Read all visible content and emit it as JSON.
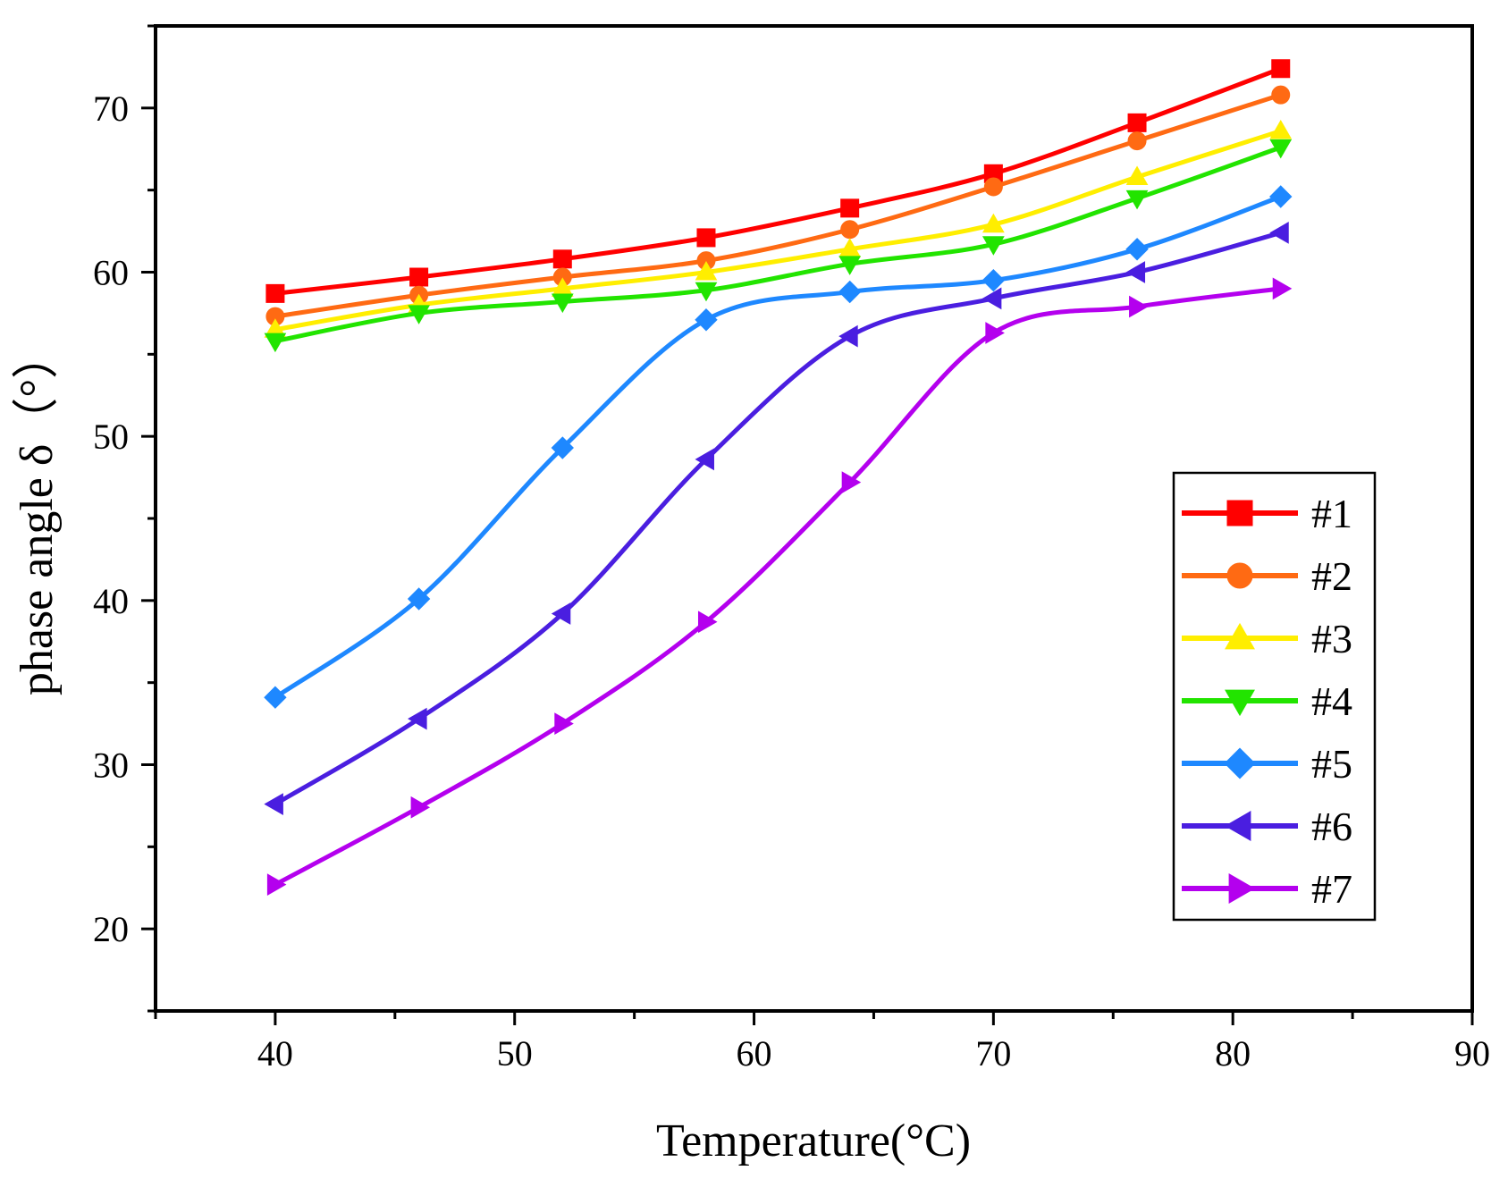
{
  "chart_data": {
    "type": "line",
    "title": "",
    "xlabel": "Temperature(°C)",
    "ylabel": "phase angle δ（°）",
    "xlim": [
      35,
      90
    ],
    "ylim": [
      15,
      75
    ],
    "x_ticks": [
      "40",
      "50",
      "60",
      "70",
      "80",
      "90"
    ],
    "y_ticks": [
      "20",
      "30",
      "40",
      "50",
      "60",
      "70"
    ],
    "x": [
      40,
      46,
      52,
      58,
      64,
      70,
      76,
      82
    ],
    "legend_position": "right-middle",
    "grid": false,
    "series": [
      {
        "name": "#1",
        "color": "#ff0000",
        "marker": "square",
        "values": [
          58.7,
          59.7,
          60.8,
          62.1,
          63.9,
          66.0,
          69.1,
          72.4
        ]
      },
      {
        "name": "#2",
        "color": "#ff6a13",
        "marker": "circle",
        "values": [
          57.3,
          58.6,
          59.7,
          60.7,
          62.6,
          65.2,
          68.0,
          70.8
        ]
      },
      {
        "name": "#3",
        "color": "#ffee00",
        "marker": "triangle-up",
        "values": [
          56.5,
          58.0,
          59.0,
          60.0,
          61.4,
          62.9,
          65.8,
          68.6
        ]
      },
      {
        "name": "#4",
        "color": "#22e400",
        "marker": "triangle-down",
        "values": [
          55.8,
          57.5,
          58.2,
          58.9,
          60.5,
          61.7,
          64.5,
          67.6
        ]
      },
      {
        "name": "#5",
        "color": "#1e88ff",
        "marker": "diamond",
        "values": [
          34.1,
          40.1,
          49.3,
          57.1,
          58.8,
          59.5,
          61.4,
          64.6
        ]
      },
      {
        "name": "#6",
        "color": "#4a1ee0",
        "marker": "triangle-left",
        "values": [
          27.6,
          32.8,
          39.2,
          48.6,
          56.1,
          58.4,
          60.0,
          62.4
        ]
      },
      {
        "name": "#7",
        "color": "#b400ee",
        "marker": "triangle-right",
        "values": [
          22.7,
          27.4,
          32.5,
          38.7,
          47.2,
          56.3,
          57.9,
          59.0
        ]
      }
    ]
  }
}
